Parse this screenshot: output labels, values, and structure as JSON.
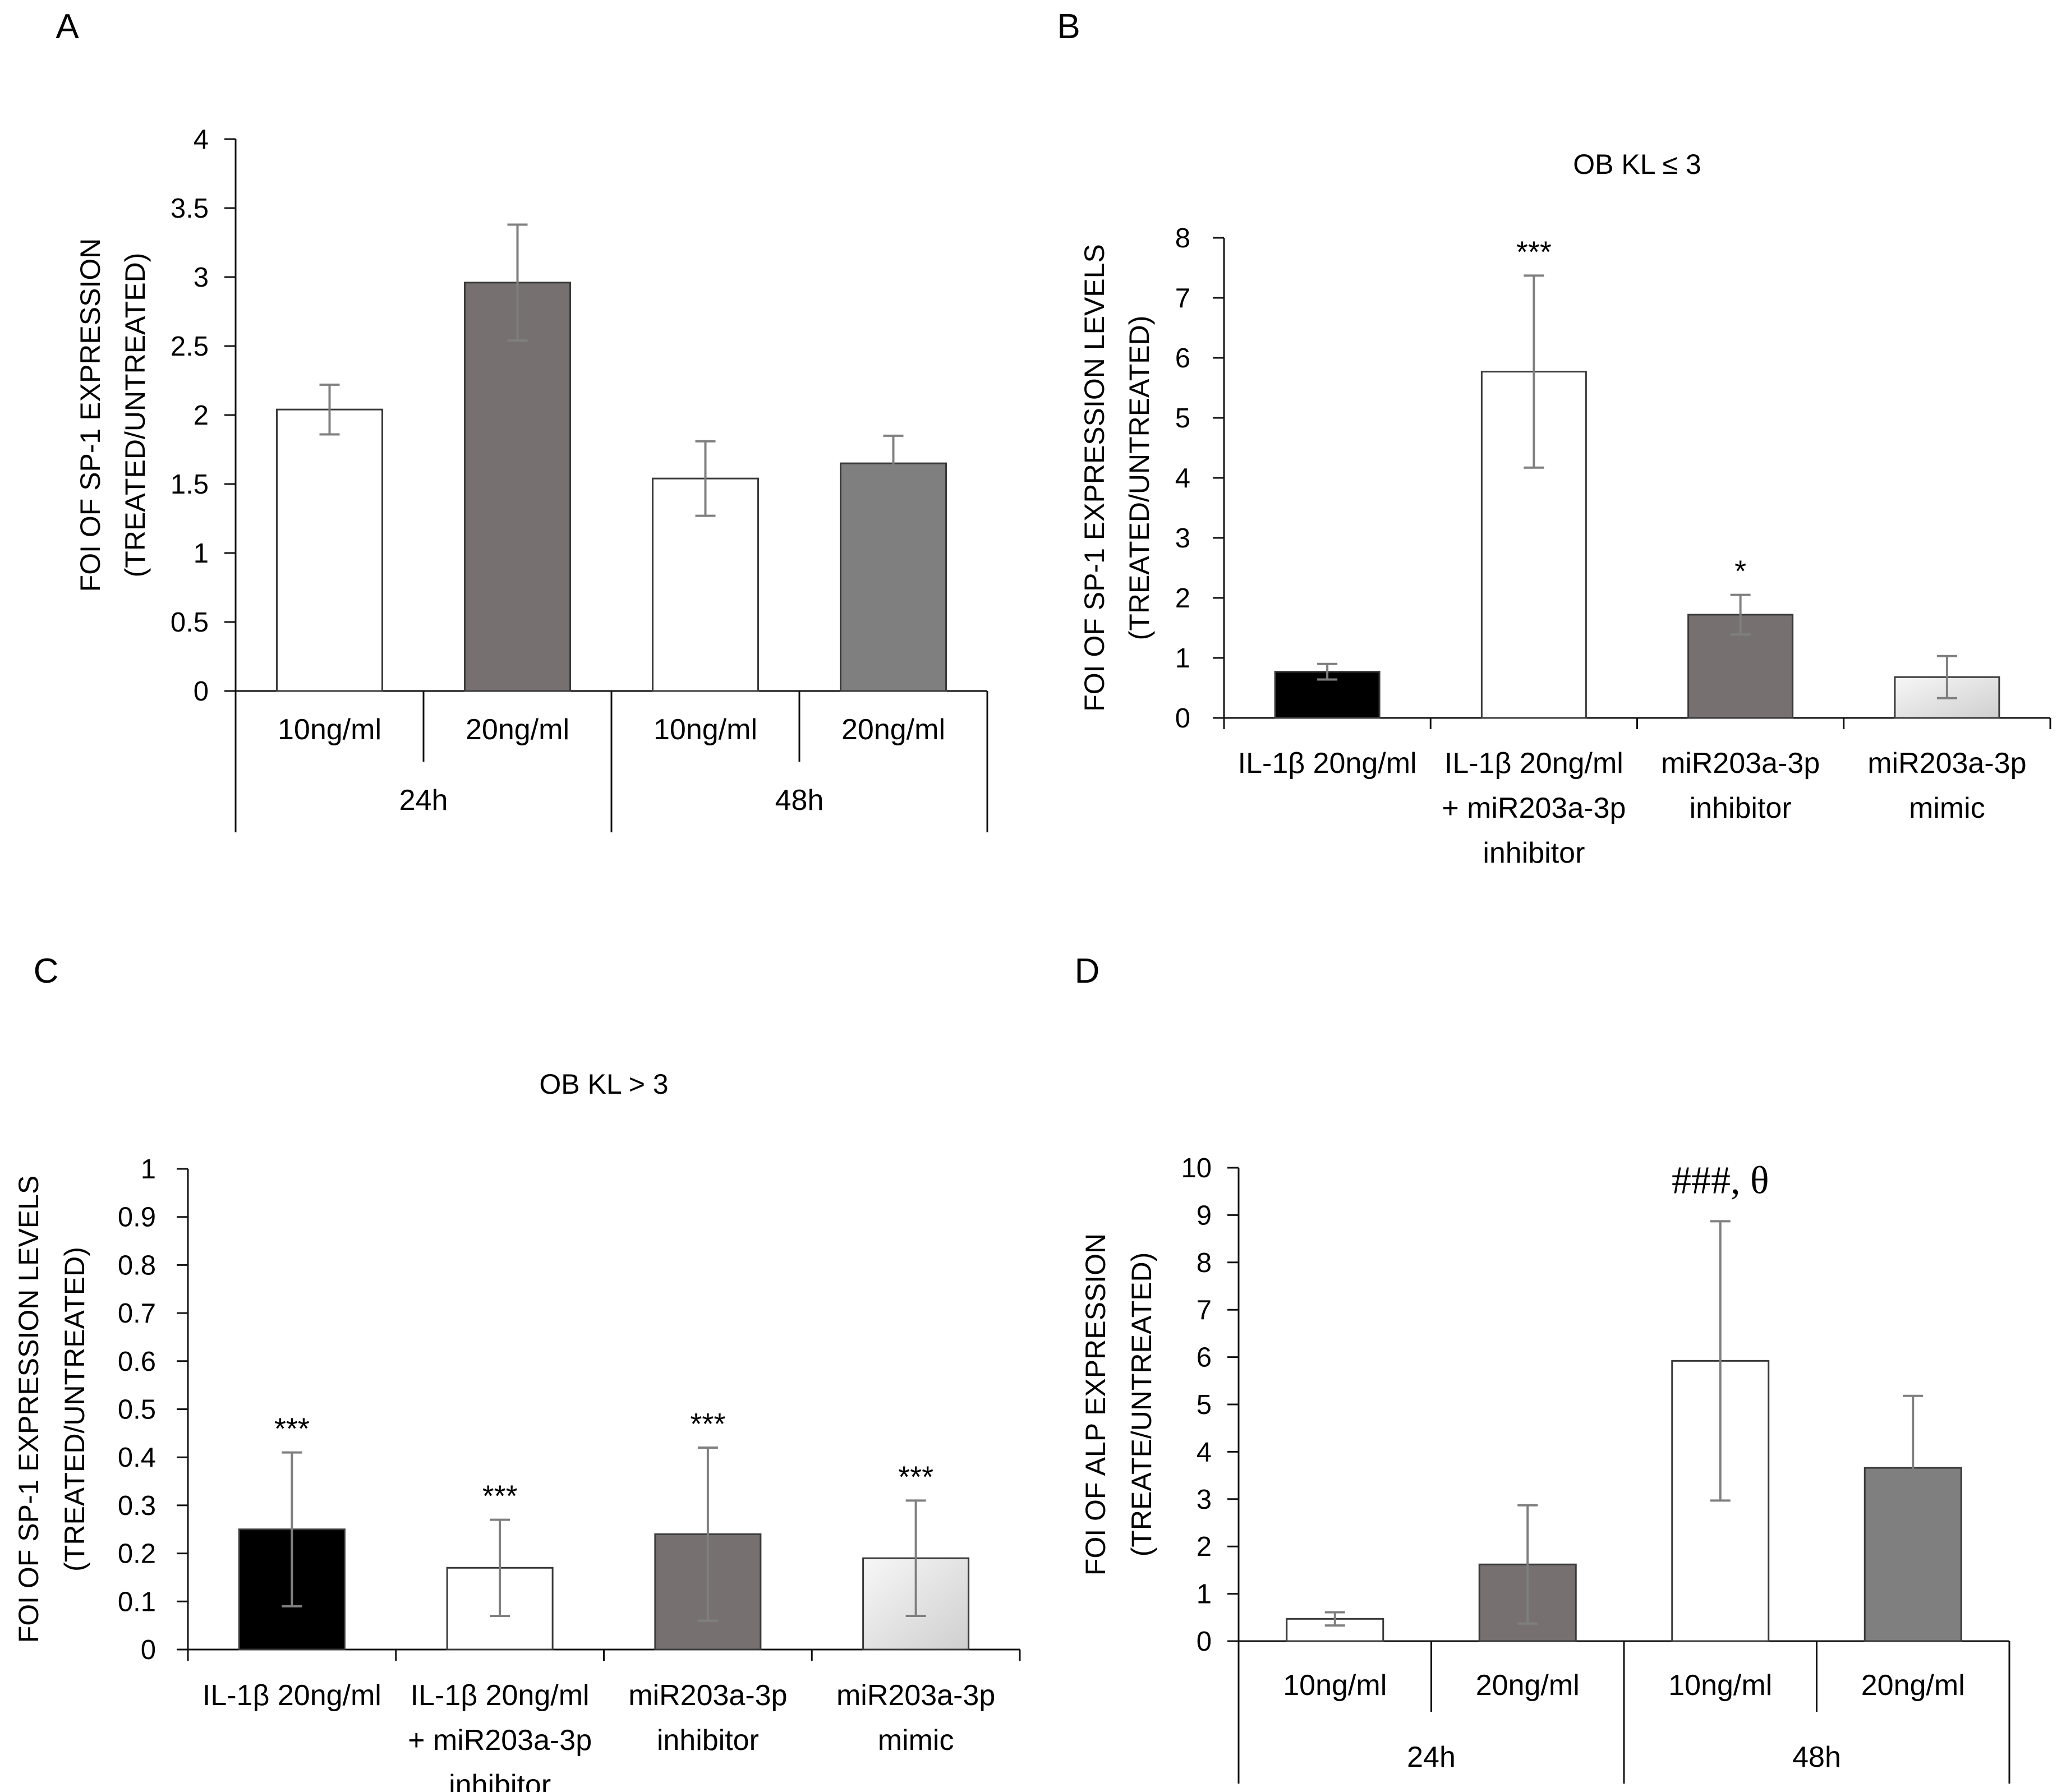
{
  "chart_data": [
    {
      "panel": "A",
      "type": "bar",
      "title": "",
      "ylabel": [
        "FOI OF SP-1 EXPRESSION",
        "(TREATED/UNTREATED)"
      ],
      "ylim": [
        0,
        4
      ],
      "yticks": [
        "0",
        "0.5",
        "1",
        "1.5",
        "2",
        "2.5",
        "3",
        "3.5",
        "4"
      ],
      "groups": [
        "24h",
        "48h"
      ],
      "categories": [
        "10ng/ml",
        "20ng/ml",
        "10ng/ml",
        "20ng/ml"
      ],
      "values": [
        2.04,
        2.96,
        1.54,
        1.65
      ],
      "errors": [
        0.18,
        0.42,
        0.27,
        0.2
      ],
      "annotations": [
        "",
        "",
        "",
        ""
      ],
      "colors": [
        "#ffffff",
        "#767070",
        "#ffffff",
        "#7f7f7f"
      ]
    },
    {
      "panel": "B",
      "type": "bar",
      "title": "OB KL ≤ 3",
      "ylabel": [
        "FOI OF SP-1 EXPRESSION LEVELS",
        "(TREATED/UNTREATED)"
      ],
      "ylim": [
        0,
        8
      ],
      "yticks": [
        "0",
        "1",
        "2",
        "3",
        "4",
        "5",
        "6",
        "7",
        "8"
      ],
      "categories": [
        [
          "IL-1β 20ng/ml"
        ],
        [
          "IL-1β 20ng/ml",
          "+ miR203a-3p",
          "inhibitor"
        ],
        [
          "miR203a-3p",
          "inhibitor"
        ],
        [
          "miR203a-3p",
          "mimic"
        ]
      ],
      "values": [
        0.77,
        5.77,
        1.72,
        0.68
      ],
      "errors": [
        0.13,
        1.6,
        0.33,
        0.35
      ],
      "annotations": [
        "",
        "***",
        "*",
        ""
      ],
      "colors": [
        "#000000",
        "#ffffff",
        "#767070",
        "url(#grad-mimic)"
      ]
    },
    {
      "panel": "C",
      "type": "bar",
      "title": "OB KL > 3",
      "ylabel": [
        "FOI OF SP-1 EXPRESSION LEVELS",
        "(TREATED/UNTREATED)"
      ],
      "ylim": [
        0,
        1
      ],
      "yticks": [
        "0",
        "0.1",
        "0.2",
        "0.3",
        "0.4",
        "0.5",
        "0.6",
        "0.7",
        "0.8",
        "0.9",
        "1"
      ],
      "categories": [
        [
          "IL-1β 20ng/ml"
        ],
        [
          "IL-1β 20ng/ml",
          "+ miR203a-3p",
          "inhibitor"
        ],
        [
          "miR203a-3p",
          "inhibitor"
        ],
        [
          "miR203a-3p",
          "mimic"
        ]
      ],
      "values": [
        0.25,
        0.17,
        0.24,
        0.19
      ],
      "errors": [
        0.16,
        0.1,
        0.18,
        0.12
      ],
      "annotations": [
        "***",
        "***",
        "***",
        "***"
      ],
      "colors": [
        "#000000",
        "#ffffff",
        "#767070",
        "url(#grad-mimic)"
      ]
    },
    {
      "panel": "D",
      "type": "bar",
      "title": "",
      "ylabel": [
        "FOI OF ALP EXPRESSION",
        "(TREATE/UNTREATED)"
      ],
      "ylim": [
        0,
        10
      ],
      "yticks": [
        "0",
        "1",
        "2",
        "3",
        "4",
        "5",
        "6",
        "7",
        "8",
        "9",
        "10"
      ],
      "groups": [
        "24h",
        "48h"
      ],
      "categories": [
        "10ng/ml",
        "20ng/ml",
        "10ng/ml",
        "20ng/ml"
      ],
      "values": [
        0.47,
        1.62,
        5.92,
        3.66
      ],
      "errors": [
        0.14,
        1.25,
        2.95,
        1.52
      ],
      "annotations": [
        "",
        "",
        "###, θ",
        ""
      ],
      "colors": [
        "#ffffff",
        "#767070",
        "#ffffff",
        "#7f7f7f"
      ]
    }
  ]
}
